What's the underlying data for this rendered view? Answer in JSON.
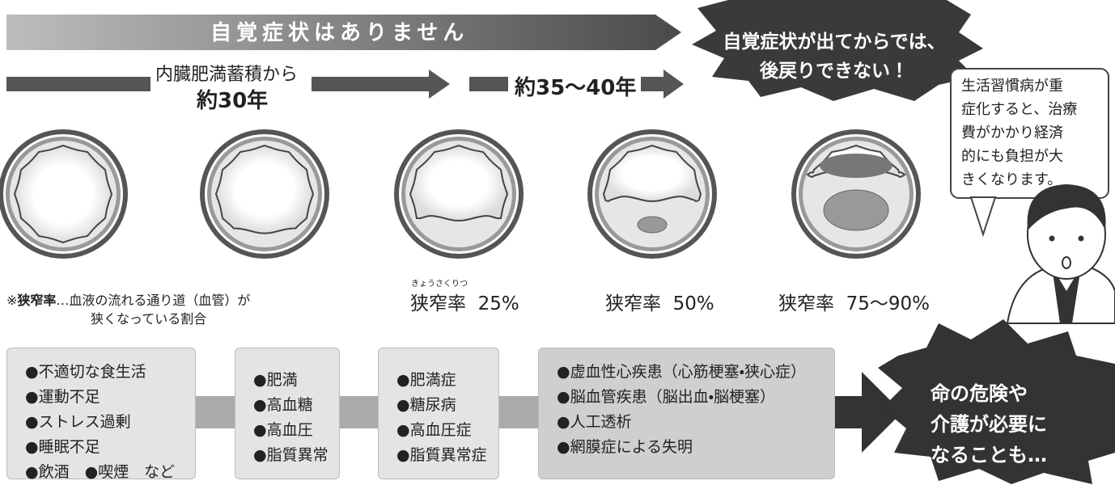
{
  "header": {
    "no_symptoms": "自覚症状はありません"
  },
  "timeline": {
    "phase1_lead": "内臓肥満蓄積から",
    "phase1_years": "約30年",
    "phase2_years": "約35〜40年"
  },
  "warning": {
    "lines": [
      "自覚症状が出てからでは、",
      "後戻りできない！"
    ]
  },
  "speech": {
    "lines": [
      "生活習慣病が重",
      "症化すると、治療",
      "費がかかり経済",
      "的にも負担が大",
      "きくなります。"
    ]
  },
  "note": {
    "mark": "※",
    "term": "狭窄率",
    "text": "…血液の流れる通り道（血管）が",
    "text2": "狭くなっている割合"
  },
  "stenosis": {
    "ruby": "きょうさくりつ",
    "labels": [
      "狭窄率  25%",
      "狭窄率  50%",
      "狭窄率  75〜90%"
    ]
  },
  "boxes": [
    [
      "●不適切な食生活",
      "●運動不足",
      "●ストレス過剰",
      "●睡眠不足",
      "●飲酒　●喫煙　など"
    ],
    [
      "●肥満",
      "●高血糖",
      "●高血圧",
      "●脂質異常"
    ],
    [
      "●肥満症",
      "●糖尿病",
      "●高血圧症",
      "●脂質異常症"
    ],
    [
      "●虚血性心疾患（心筋梗塞・狭心症）",
      "●脳血管疾患（脳出血・脳梗塞）",
      "●人工透析",
      "●網膜症による失明"
    ]
  ],
  "danger": {
    "lines": [
      "命の危険や",
      "介護が必要に",
      "なることも…"
    ]
  }
}
